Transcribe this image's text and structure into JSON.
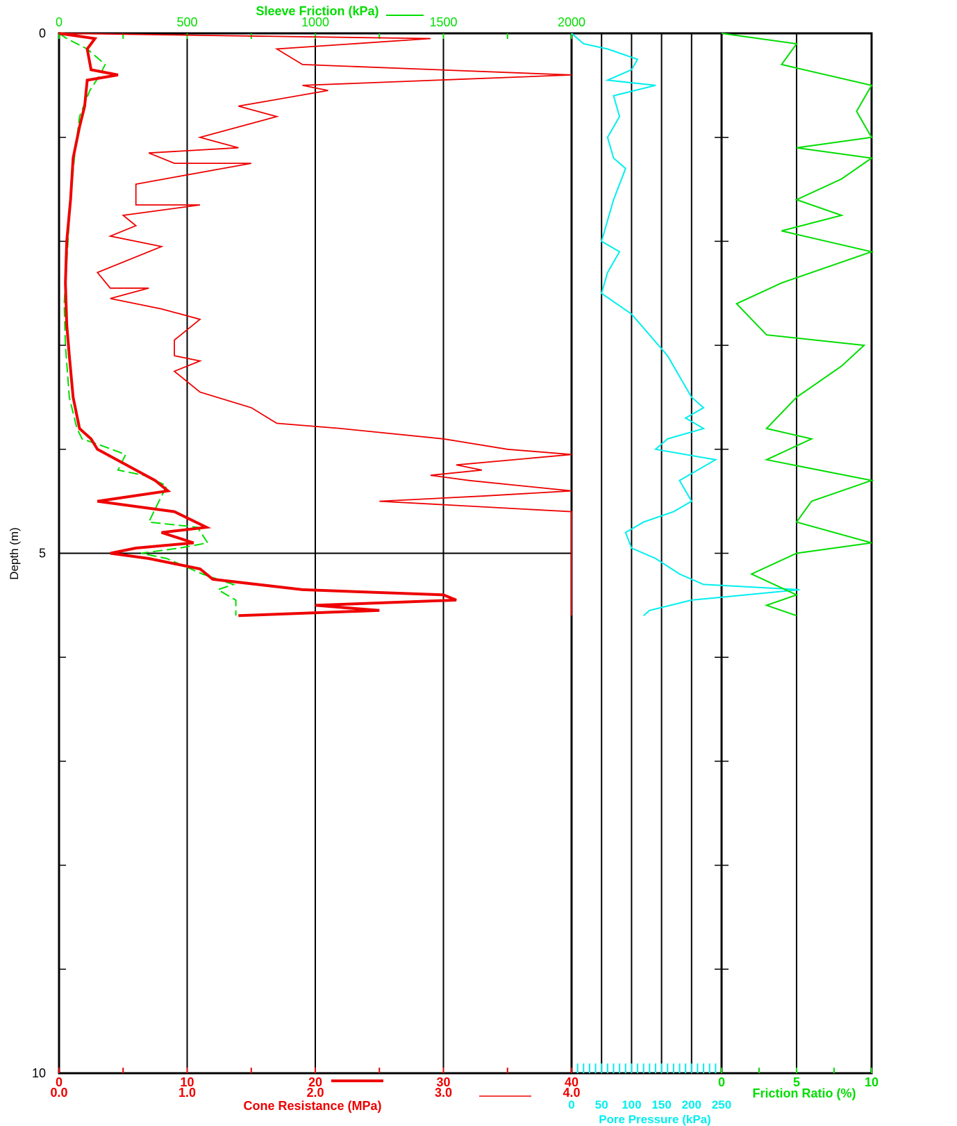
{
  "chart_data": {
    "type": "line",
    "depth_axis": {
      "label": "Depth (m)",
      "range": [
        0,
        10
      ],
      "ticks": [
        "0",
        "5",
        "10"
      ],
      "inverted": true
    },
    "sleeve_friction": {
      "label": "Sleeve Friction (kPa)",
      "range": [
        0,
        2000
      ],
      "ticks": [
        "0",
        "500",
        "1000",
        "1500",
        "2000"
      ],
      "color": "#00dd00",
      "style": "dashed",
      "points": [
        [
          0,
          0
        ],
        [
          30,
          0.05
        ],
        [
          110,
          0.15
        ],
        [
          180,
          0.3
        ],
        [
          160,
          0.4
        ],
        [
          120,
          0.55
        ],
        [
          80,
          0.8
        ],
        [
          60,
          1.2
        ],
        [
          45,
          1.6
        ],
        [
          30,
          2.2
        ],
        [
          20,
          2.6
        ],
        [
          25,
          3.0
        ],
        [
          40,
          3.5
        ],
        [
          70,
          3.8
        ],
        [
          90,
          3.9
        ],
        [
          150,
          3.95
        ],
        [
          260,
          4.05
        ],
        [
          230,
          4.2
        ],
        [
          330,
          4.25
        ],
        [
          420,
          4.35
        ],
        [
          380,
          4.55
        ],
        [
          350,
          4.7
        ],
        [
          540,
          4.75
        ],
        [
          580,
          4.9
        ],
        [
          470,
          4.95
        ],
        [
          320,
          5.0
        ],
        [
          420,
          5.05
        ],
        [
          560,
          5.2
        ],
        [
          680,
          5.3
        ],
        [
          620,
          5.35
        ],
        [
          690,
          5.45
        ],
        [
          690,
          5.6
        ]
      ]
    },
    "cone_resistance": {
      "label": "Cone Resistance (MPa)",
      "ticks_40": [
        "0",
        "10",
        "20",
        "30",
        "40"
      ],
      "ticks_4": [
        "0.0",
        "1.0",
        "2.0",
        "3.0",
        "4.0"
      ],
      "series": [
        {
          "scale": "0-40 MPa",
          "color": "#ee0000",
          "width": "thick",
          "points": [
            [
              0,
              0
            ],
            [
              2.8,
              0.05
            ],
            [
              2.2,
              0.15
            ],
            [
              2.5,
              0.35
            ],
            [
              4.6,
              0.4
            ],
            [
              2.2,
              0.45
            ],
            [
              2.0,
              0.7
            ],
            [
              1.6,
              0.9
            ],
            [
              1.1,
              1.2
            ],
            [
              0.9,
              1.6
            ],
            [
              0.6,
              2.0
            ],
            [
              0.5,
              2.4
            ],
            [
              0.6,
              2.8
            ],
            [
              0.8,
              3.1
            ],
            [
              1.1,
              3.5
            ],
            [
              1.6,
              3.8
            ],
            [
              2.5,
              3.9
            ],
            [
              3.0,
              4.0
            ],
            [
              4.5,
              4.1
            ],
            [
              6.0,
              4.2
            ],
            [
              7.5,
              4.3
            ],
            [
              8.5,
              4.4
            ],
            [
              3.0,
              4.5
            ],
            [
              6.0,
              4.55
            ],
            [
              9.0,
              4.6
            ],
            [
              11.5,
              4.75
            ],
            [
              8.0,
              4.8
            ],
            [
              10.5,
              4.9
            ],
            [
              6.0,
              4.95
            ],
            [
              4.0,
              5.0
            ],
            [
              7.0,
              5.05
            ],
            [
              11.0,
              5.15
            ],
            [
              12.0,
              5.25
            ],
            [
              19.0,
              5.35
            ],
            [
              30.0,
              5.4
            ],
            [
              31.0,
              5.45
            ],
            [
              20.0,
              5.5
            ],
            [
              25.0,
              5.55
            ],
            [
              14.0,
              5.6
            ]
          ]
        },
        {
          "scale": "0-4 MPa",
          "color": "#ee0000",
          "width": "thin",
          "points": [
            [
              0,
              0
            ],
            [
              2.9,
              0.05
            ],
            [
              1.7,
              0.15
            ],
            [
              1.9,
              0.3
            ],
            [
              4.0,
              0.4
            ],
            [
              1.9,
              0.5
            ],
            [
              2.1,
              0.55
            ],
            [
              1.4,
              0.7
            ],
            [
              1.7,
              0.8
            ],
            [
              1.1,
              1.0
            ],
            [
              1.4,
              1.1
            ],
            [
              0.7,
              1.15
            ],
            [
              0.9,
              1.25
            ],
            [
              1.5,
              1.25
            ],
            [
              0.6,
              1.45
            ],
            [
              0.6,
              1.65
            ],
            [
              1.1,
              1.65
            ],
            [
              0.5,
              1.75
            ],
            [
              0.6,
              1.85
            ],
            [
              0.4,
              1.95
            ],
            [
              0.8,
              2.05
            ],
            [
              0.3,
              2.3
            ],
            [
              0.4,
              2.45
            ],
            [
              0.7,
              2.45
            ],
            [
              0.4,
              2.55
            ],
            [
              0.8,
              2.65
            ],
            [
              1.1,
              2.75
            ],
            [
              0.9,
              2.95
            ],
            [
              0.9,
              3.1
            ],
            [
              1.1,
              3.15
            ],
            [
              0.9,
              3.25
            ],
            [
              1.1,
              3.45
            ],
            [
              1.5,
              3.6
            ],
            [
              1.7,
              3.75
            ],
            [
              2.2,
              3.8
            ],
            [
              3.0,
              3.9
            ],
            [
              3.5,
              4.0
            ],
            [
              4.0,
              4.05
            ],
            [
              3.1,
              4.15
            ],
            [
              3.3,
              4.2
            ],
            [
              2.9,
              4.25
            ],
            [
              3.2,
              4.3
            ],
            [
              4.0,
              4.4
            ],
            [
              3.3,
              4.45
            ],
            [
              2.5,
              4.5
            ],
            [
              4.0,
              4.6
            ],
            [
              4.0,
              5.6
            ]
          ]
        }
      ]
    },
    "pore_pressure": {
      "label": "Pore Pressure (kPa)",
      "range": [
        0,
        250
      ],
      "ticks": [
        "0",
        "50",
        "100",
        "150",
        "200",
        "250"
      ],
      "color": "#00eeee",
      "points": [
        [
          0,
          0
        ],
        [
          20,
          0.1
        ],
        [
          60,
          0.15
        ],
        [
          110,
          0.25
        ],
        [
          100,
          0.35
        ],
        [
          60,
          0.45
        ],
        [
          140,
          0.5
        ],
        [
          70,
          0.6
        ],
        [
          80,
          0.8
        ],
        [
          60,
          1.0
        ],
        [
          70,
          1.2
        ],
        [
          90,
          1.3
        ],
        [
          70,
          1.6
        ],
        [
          60,
          1.8
        ],
        [
          50,
          2.0
        ],
        [
          80,
          2.1
        ],
        [
          60,
          2.3
        ],
        [
          50,
          2.5
        ],
        [
          100,
          2.7
        ],
        [
          130,
          2.9
        ],
        [
          160,
          3.1
        ],
        [
          180,
          3.3
        ],
        [
          200,
          3.5
        ],
        [
          220,
          3.6
        ],
        [
          190,
          3.7
        ],
        [
          220,
          3.8
        ],
        [
          160,
          3.9
        ],
        [
          140,
          4.0
        ],
        [
          240,
          4.1
        ],
        [
          180,
          4.3
        ],
        [
          200,
          4.5
        ],
        [
          170,
          4.6
        ],
        [
          120,
          4.7
        ],
        [
          90,
          4.8
        ],
        [
          100,
          4.95
        ],
        [
          140,
          5.05
        ],
        [
          180,
          5.2
        ],
        [
          220,
          5.3
        ],
        [
          380,
          5.35
        ],
        [
          200,
          5.45
        ],
        [
          130,
          5.55
        ],
        [
          120,
          5.6
        ]
      ]
    },
    "friction_ratio": {
      "label": "Friction Ratio (%)",
      "range": [
        0,
        10
      ],
      "ticks": [
        "0",
        "5",
        "10"
      ],
      "color": "#00dd00",
      "points": [
        [
          0,
          0
        ],
        [
          5,
          0.1
        ],
        [
          4,
          0.3
        ],
        [
          10,
          0.5
        ],
        [
          9,
          0.75
        ],
        [
          10,
          1.0
        ],
        [
          5,
          1.1
        ],
        [
          10,
          1.2
        ],
        [
          8,
          1.4
        ],
        [
          5,
          1.6
        ],
        [
          8,
          1.75
        ],
        [
          4,
          1.9
        ],
        [
          10,
          2.1
        ],
        [
          4,
          2.4
        ],
        [
          1,
          2.6
        ],
        [
          3,
          2.9
        ],
        [
          9.5,
          3.0
        ],
        [
          8,
          3.2
        ],
        [
          5,
          3.5
        ],
        [
          3,
          3.8
        ],
        [
          6,
          3.9
        ],
        [
          3,
          4.1
        ],
        [
          10,
          4.3
        ],
        [
          6,
          4.5
        ],
        [
          5,
          4.7
        ],
        [
          10,
          4.9
        ],
        [
          5,
          5.0
        ],
        [
          2,
          5.2
        ],
        [
          5,
          5.4
        ],
        [
          3,
          5.5
        ],
        [
          5,
          5.6
        ]
      ]
    }
  }
}
